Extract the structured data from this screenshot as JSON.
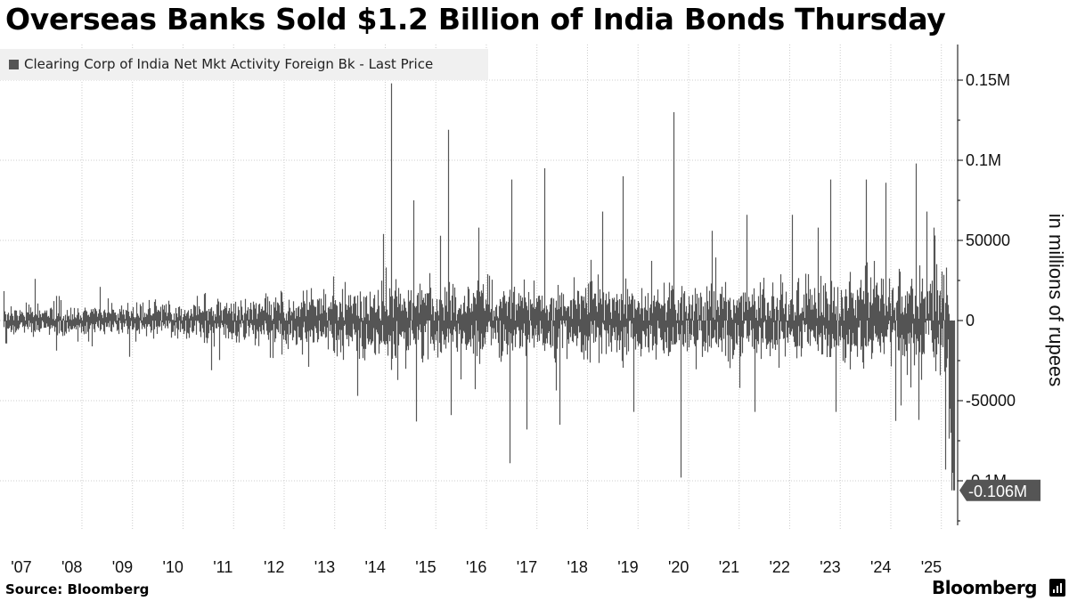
{
  "title": "Overseas Banks Sold $1.2 Billion of India Bonds Thursday",
  "source": "Source: Bloomberg",
  "brand": "Bloomberg",
  "colors": {
    "series": "#555555",
    "grid": "#cccccc",
    "background": "#ffffff",
    "axis": "#000000"
  },
  "chart_data": {
    "type": "bar",
    "legend": "Clearing Corp of India Net Mkt Activity Foreign Bk - Last Price",
    "legend_position": "top-left",
    "ylabel": "in millions of rupees",
    "x_tick_labels": [
      "'07",
      "'08",
      "'09",
      "'10",
      "'11",
      "'12",
      "'13",
      "'14",
      "'15",
      "'16",
      "'17",
      "'18",
      "'19",
      "'20",
      "'21",
      "'22",
      "'23",
      "'24",
      "'25"
    ],
    "y_ticks": [
      {
        "value": 150000,
        "label": "0.15M"
      },
      {
        "value": 100000,
        "label": "0.1M"
      },
      {
        "value": 50000,
        "label": "50000"
      },
      {
        "value": 0,
        "label": "0"
      },
      {
        "value": -50000,
        "label": "-50000"
      },
      {
        "value": -100000,
        "label": "-0.1M"
      }
    ],
    "ylim": [
      -128000,
      172000
    ],
    "xlim": [
      2006.5,
      2025.4
    ],
    "grid": true,
    "last_value_label": "-0.106M",
    "last_value": -106000,
    "amplitude_envelope": [
      {
        "year": 2006.5,
        "amp": 8000
      },
      {
        "year": 2008.0,
        "amp": 7000
      },
      {
        "year": 2009.5,
        "amp": 9000
      },
      {
        "year": 2011.0,
        "amp": 11000
      },
      {
        "year": 2012.5,
        "amp": 14000
      },
      {
        "year": 2013.5,
        "amp": 17000
      },
      {
        "year": 2015.0,
        "amp": 19000
      },
      {
        "year": 2017.0,
        "amp": 18000
      },
      {
        "year": 2019.0,
        "amp": 18000
      },
      {
        "year": 2021.0,
        "amp": 18000
      },
      {
        "year": 2023.0,
        "amp": 20000
      },
      {
        "year": 2024.5,
        "amp": 22000
      },
      {
        "year": 2025.3,
        "amp": 24000
      }
    ],
    "notable_points": [
      {
        "year": 2007.06,
        "value": 26000
      },
      {
        "year": 2008.35,
        "value": 21000
      },
      {
        "year": 2010.55,
        "value": -31000
      },
      {
        "year": 2013.45,
        "value": -47000
      },
      {
        "year": 2013.95,
        "value": 54000
      },
      {
        "year": 2014.12,
        "value": 148000
      },
      {
        "year": 2014.55,
        "value": 75000
      },
      {
        "year": 2014.6,
        "value": -63000
      },
      {
        "year": 2015.25,
        "value": 119000
      },
      {
        "year": 2015.3,
        "value": -59000
      },
      {
        "year": 2015.85,
        "value": 58000
      },
      {
        "year": 2016.45,
        "value": -89000
      },
      {
        "year": 2016.5,
        "value": 88000
      },
      {
        "year": 2016.8,
        "value": -68000
      },
      {
        "year": 2017.15,
        "value": 95000
      },
      {
        "year": 2017.45,
        "value": -65000
      },
      {
        "year": 2018.3,
        "value": 68000
      },
      {
        "year": 2018.7,
        "value": 90000
      },
      {
        "year": 2018.9,
        "value": -57000
      },
      {
        "year": 2019.7,
        "value": 130000
      },
      {
        "year": 2019.85,
        "value": -98000
      },
      {
        "year": 2020.45,
        "value": 56000
      },
      {
        "year": 2021.15,
        "value": 66000
      },
      {
        "year": 2021.3,
        "value": -57000
      },
      {
        "year": 2022.05,
        "value": 66000
      },
      {
        "year": 2022.55,
        "value": 58000
      },
      {
        "year": 2022.8,
        "value": 88000
      },
      {
        "year": 2022.9,
        "value": -57000
      },
      {
        "year": 2023.5,
        "value": 88000
      },
      {
        "year": 2023.9,
        "value": 86000
      },
      {
        "year": 2024.2,
        "value": -53000
      },
      {
        "year": 2024.5,
        "value": 98000
      },
      {
        "year": 2024.55,
        "value": -62000
      },
      {
        "year": 2024.85,
        "value": 58000
      },
      {
        "year": 2025.07,
        "value": -93000
      },
      {
        "year": 2025.2,
        "value": -106000
      }
    ]
  }
}
